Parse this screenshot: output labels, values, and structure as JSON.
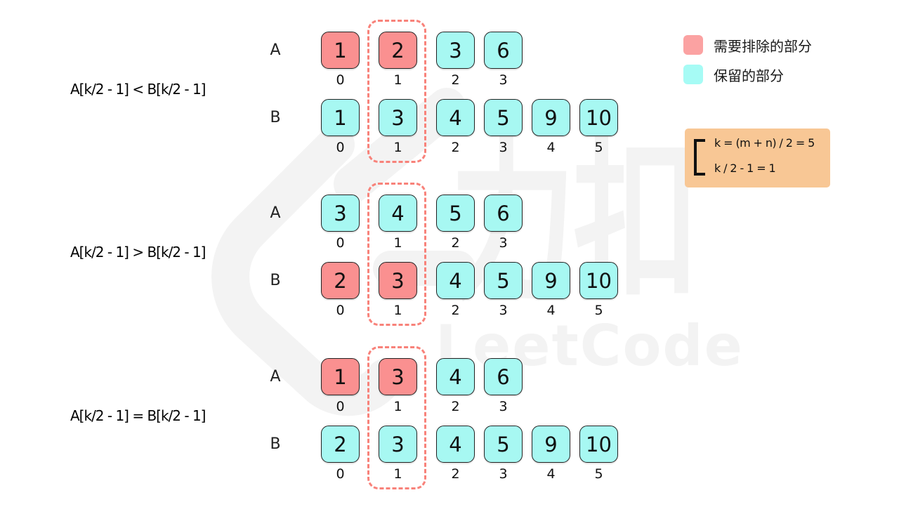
{
  "colors": {
    "exclude": "#FA9090",
    "keep": "#A7F8F2",
    "dashed_outline": "#F8827A",
    "note_bg": "#F8C795"
  },
  "legend": {
    "items": [
      {
        "swatch_color": "#FBA2A2",
        "label": "需要排除的部分"
      },
      {
        "swatch_color": "#A6FBF5",
        "label": "保留的部分"
      }
    ]
  },
  "note": {
    "lines": [
      "k = (m + n) / 2 = 5",
      "k / 2 - 1 = 1"
    ]
  },
  "watermark": {
    "cn": "力扣",
    "en": "LeetCode"
  },
  "cases": [
    {
      "label": "A[k/2 - 1] < B[k/2 - 1]",
      "highlight_index": 1,
      "rows": [
        {
          "name": "A",
          "cells": [
            {
              "v": "1",
              "i": "0",
              "t": "exclude"
            },
            {
              "v": "2",
              "i": "1",
              "t": "exclude"
            },
            {
              "v": "3",
              "i": "2",
              "t": "keep"
            },
            {
              "v": "6",
              "i": "3",
              "t": "keep"
            }
          ]
        },
        {
          "name": "B",
          "cells": [
            {
              "v": "1",
              "i": "0",
              "t": "keep"
            },
            {
              "v": "3",
              "i": "1",
              "t": "keep"
            },
            {
              "v": "4",
              "i": "2",
              "t": "keep"
            },
            {
              "v": "5",
              "i": "3",
              "t": "keep"
            },
            {
              "v": "9",
              "i": "4",
              "t": "keep"
            },
            {
              "v": "10",
              "i": "5",
              "t": "keep"
            }
          ]
        }
      ]
    },
    {
      "label": "A[k/2 - 1] > B[k/2 - 1]",
      "highlight_index": 1,
      "rows": [
        {
          "name": "A",
          "cells": [
            {
              "v": "3",
              "i": "0",
              "t": "keep"
            },
            {
              "v": "4",
              "i": "1",
              "t": "keep"
            },
            {
              "v": "5",
              "i": "2",
              "t": "keep"
            },
            {
              "v": "6",
              "i": "3",
              "t": "keep"
            }
          ]
        },
        {
          "name": "B",
          "cells": [
            {
              "v": "2",
              "i": "0",
              "t": "exclude"
            },
            {
              "v": "3",
              "i": "1",
              "t": "exclude"
            },
            {
              "v": "4",
              "i": "2",
              "t": "keep"
            },
            {
              "v": "5",
              "i": "3",
              "t": "keep"
            },
            {
              "v": "9",
              "i": "4",
              "t": "keep"
            },
            {
              "v": "10",
              "i": "5",
              "t": "keep"
            }
          ]
        }
      ]
    },
    {
      "label": "A[k/2 - 1] = B[k/2 - 1]",
      "highlight_index": 1,
      "rows": [
        {
          "name": "A",
          "cells": [
            {
              "v": "1",
              "i": "0",
              "t": "exclude"
            },
            {
              "v": "3",
              "i": "1",
              "t": "exclude"
            },
            {
              "v": "4",
              "i": "2",
              "t": "keep"
            },
            {
              "v": "6",
              "i": "3",
              "t": "keep"
            }
          ]
        },
        {
          "name": "B",
          "cells": [
            {
              "v": "2",
              "i": "0",
              "t": "keep"
            },
            {
              "v": "3",
              "i": "1",
              "t": "keep"
            },
            {
              "v": "4",
              "i": "2",
              "t": "keep"
            },
            {
              "v": "5",
              "i": "3",
              "t": "keep"
            },
            {
              "v": "9",
              "i": "4",
              "t": "keep"
            },
            {
              "v": "10",
              "i": "5",
              "t": "keep"
            }
          ]
        }
      ]
    }
  ]
}
